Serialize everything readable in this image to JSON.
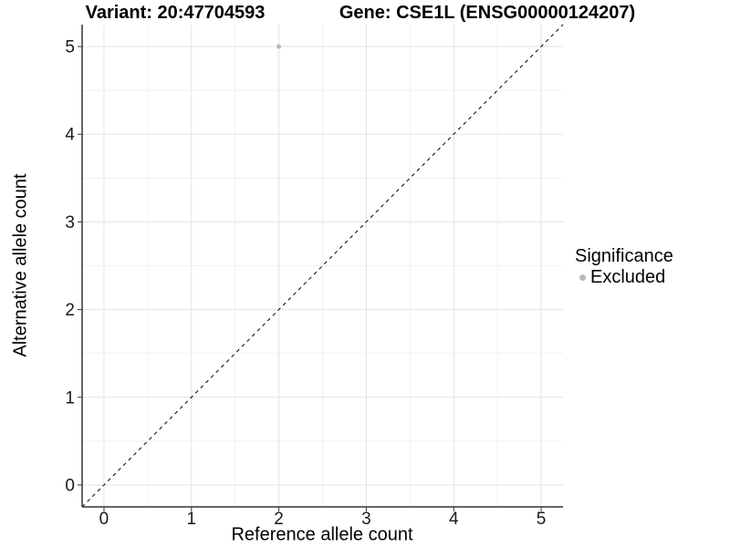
{
  "header": {
    "variant_title": "Variant: 20:47704593",
    "gene_title": "Gene: CSE1L (ENSG00000124207)"
  },
  "chart_data": {
    "type": "scatter",
    "xlabel": "Reference allele count",
    "ylabel": "Alternative allele count",
    "xlim": [
      -0.25,
      5.25
    ],
    "ylim": [
      -0.25,
      5.25
    ],
    "xticks": [
      0,
      1,
      2,
      3,
      4,
      5
    ],
    "yticks": [
      0,
      1,
      2,
      3,
      4,
      5
    ],
    "grid": "major-and-minor, minor at 0.5 steps",
    "points": [
      {
        "x": 2,
        "y": 5,
        "series": "Excluded"
      }
    ],
    "reference_line": {
      "type": "identity y=x",
      "dash": "4 4",
      "color": "#000000"
    },
    "legend": {
      "title": "Significance",
      "position": "right",
      "items": [
        {
          "label": "Excluded",
          "marker": "circle-icon",
          "color": "#b8b8b8"
        }
      ]
    },
    "colors": {
      "point": "#b8b8b8",
      "grid_major": "#e3e3e3",
      "grid_minor": "#f1f1f1",
      "axis_line": "#333333",
      "tick_mark": "#333333",
      "tick_text": "#1a1a1a",
      "background": "#ffffff"
    }
  }
}
